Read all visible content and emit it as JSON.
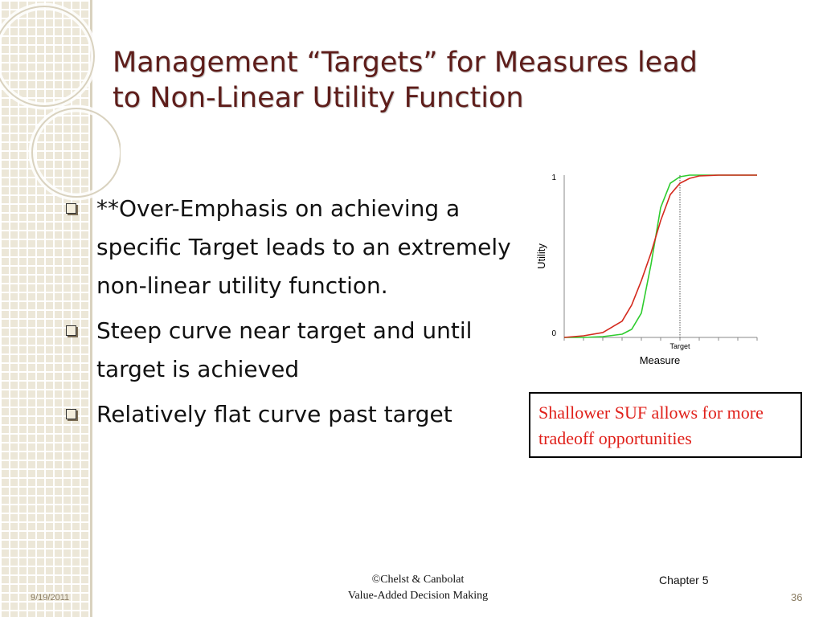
{
  "slide": {
    "title_line1": "Management “Targets” for Measures lead",
    "title_line2": "to Non-Linear Utility Function",
    "bullets": [
      "**Over-Emphasis on achieving a specific Target leads to an extremely non-linear utility function.",
      "Steep curve near target and until target is achieved",
      "Relatively flat curve past target"
    ],
    "note": "Shallower SUF allows for more tradeoff opportunities",
    "footer": {
      "credit_line1": "©Chelst & Canbolat",
      "credit_line2": "Value-Added Decision Making",
      "chapter": "Chapter 5",
      "date": "9/19/2011",
      "page": "36"
    }
  },
  "colors": {
    "title": "#5e1d1a",
    "steep_curve": "#2ecc2e",
    "shallow_curve": "#d42a1e",
    "note_text": "#e0201a"
  },
  "chart_data": {
    "type": "line",
    "xlabel": "Measure",
    "ylabel": "Utility",
    "y_ticks": [
      "0",
      "1"
    ],
    "x_marker_label": "Target",
    "x_marker": 0.6,
    "xlim": [
      0,
      1
    ],
    "ylim": [
      0,
      1
    ],
    "grid": false,
    "series": [
      {
        "color": "#2ecc2e",
        "x": [
          0,
          0.1,
          0.2,
          0.3,
          0.35,
          0.4,
          0.45,
          0.5,
          0.55,
          0.6,
          0.65,
          0.7,
          0.8,
          1.0
        ],
        "y": [
          0,
          0,
          0.005,
          0.02,
          0.05,
          0.15,
          0.45,
          0.8,
          0.95,
          0.99,
          1.0,
          1.0,
          1.0,
          1.0
        ]
      },
      {
        "color": "#d42a1e",
        "x": [
          0,
          0.1,
          0.2,
          0.3,
          0.35,
          0.4,
          0.45,
          0.5,
          0.55,
          0.6,
          0.65,
          0.7,
          0.8,
          1.0
        ],
        "y": [
          0,
          0.01,
          0.03,
          0.1,
          0.2,
          0.35,
          0.52,
          0.72,
          0.88,
          0.95,
          0.98,
          0.995,
          1.0,
          1.0
        ]
      }
    ]
  }
}
